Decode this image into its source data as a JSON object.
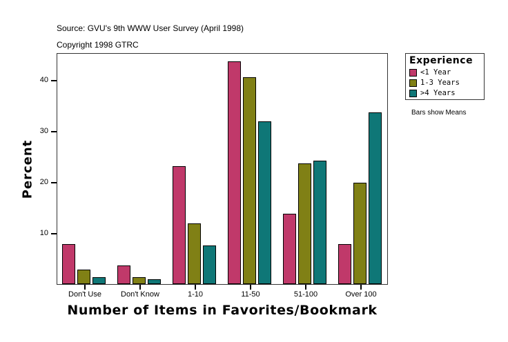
{
  "header": {
    "source": "Source: GVU's 9th WWW User Survey (April 1998)",
    "copyright": "Copyright 1998 GTRC"
  },
  "legend": {
    "title": "Experience",
    "items": [
      {
        "label": "<1 Year",
        "color": "#C0396A"
      },
      {
        "label": "1-3 Years",
        "color": "#808015"
      },
      {
        "label": ">4 Years",
        "color": "#0F7777"
      }
    ]
  },
  "note": "Bars show Means",
  "axes": {
    "xlabel": "Number of Items in Favorites/Bookmark",
    "ylabel": "Percent",
    "yticks": [
      "10",
      "20",
      "30",
      "40"
    ]
  },
  "chart_data": {
    "type": "bar",
    "title": "",
    "subtitle": "Source: GVU's 9th WWW User Survey (April 1998) / Copyright 1998 GTRC",
    "xlabel": "Number of Items in Favorites/Bookmark",
    "ylabel": "Percent",
    "categories": [
      "Don't Use",
      "Don't Know",
      "1-10",
      "11-50",
      "51-100",
      "Over 100"
    ],
    "series": [
      {
        "name": "<1 Year",
        "color": "#C0396A",
        "values": [
          7.9,
          3.6,
          23.1,
          43.6,
          13.8,
          7.9
        ]
      },
      {
        "name": "1-3 Years",
        "color": "#808015",
        "values": [
          2.8,
          1.3,
          11.9,
          40.5,
          23.6,
          19.8
        ]
      },
      {
        "name": ">4 Years",
        "color": "#0F7777",
        "values": [
          1.4,
          0.9,
          7.6,
          31.9,
          24.2,
          33.7
        ]
      }
    ],
    "legend_title": "Experience",
    "legend_position": "right",
    "annotation": "Bars show Means",
    "ylim": [
      0,
      45.4
    ],
    "yticks": [
      10,
      20,
      30,
      40
    ],
    "grid": false
  }
}
